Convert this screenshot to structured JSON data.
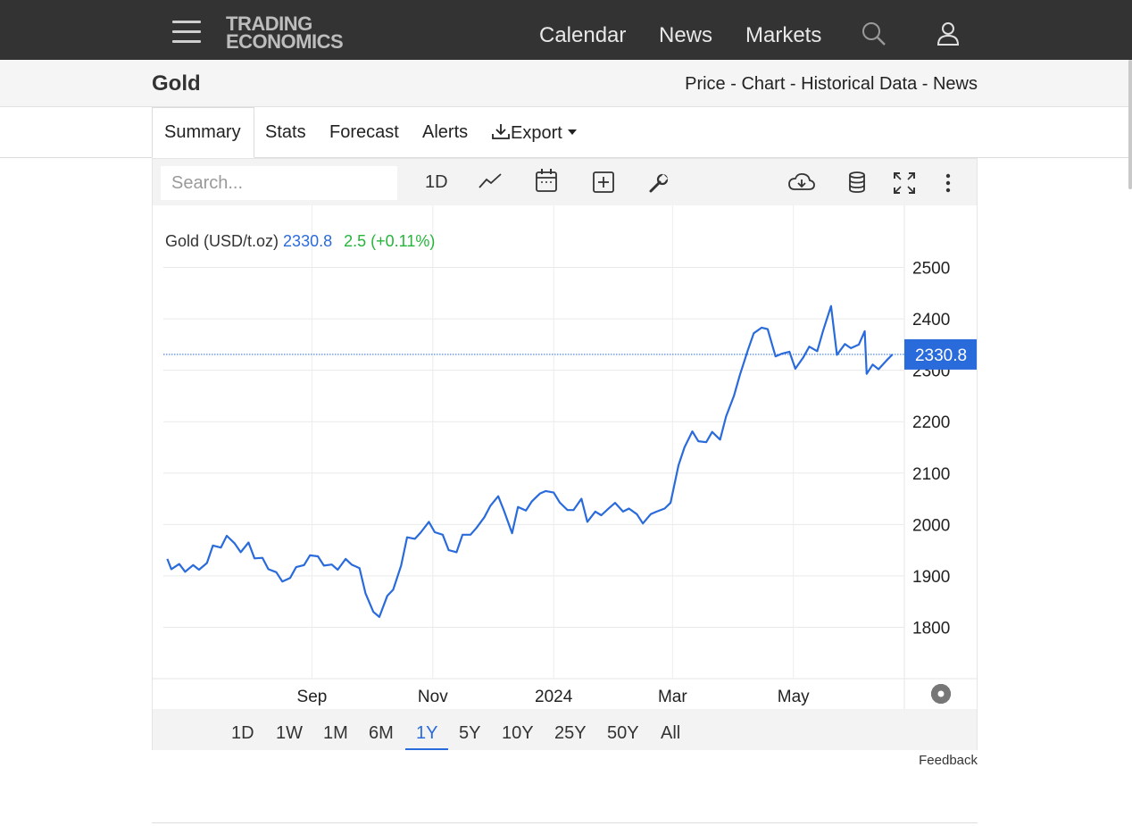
{
  "navbar": {
    "logo_line1": "TRADING",
    "logo_line2": "ECONOMICS",
    "links": [
      "Calendar",
      "News",
      "Markets"
    ],
    "icons": [
      "menu-icon",
      "search-icon",
      "user-icon"
    ]
  },
  "header": {
    "title": "Gold",
    "links": [
      "Price",
      "Chart",
      "Historical Data",
      "News"
    ],
    "separator": " - "
  },
  "tabs": [
    "Summary",
    "Stats",
    "Forecast",
    "Alerts",
    "Export"
  ],
  "toolbar": {
    "search_placeholder": "Search...",
    "interval_label": "1D",
    "icons": [
      "line-chart-icon",
      "calendar-icon",
      "add-indicator-icon",
      "wrench-icon",
      "download-cloud-icon",
      "database-icon",
      "fullscreen-icon",
      "more-vertical-icon",
      "settings-icon"
    ]
  },
  "legend": {
    "name": "Gold (USD/t.oz)",
    "price": "2330.8",
    "change": "2.5 (+0.11%)"
  },
  "range_buttons": [
    "1D",
    "1W",
    "1M",
    "6M",
    "1Y",
    "5Y",
    "10Y",
    "25Y",
    "50Y",
    "All"
  ],
  "active_range": "1Y",
  "feedback_label": "Feedback",
  "colors": {
    "line": "#2a6bdc",
    "change_positive": "#25b53a",
    "topbar": "#333333"
  },
  "chart_data": {
    "type": "line",
    "title": "",
    "xlabel": "",
    "ylabel": "",
    "ylim": [
      1700,
      2520
    ],
    "yticks": [
      1800,
      1900,
      2000,
      2100,
      2200,
      2300,
      2400,
      2500
    ],
    "x_tick_labels": [
      "Sep",
      "Nov",
      "2024",
      "Mar",
      "May"
    ],
    "x_tick_dates": [
      "2023-09-01",
      "2023-11-01",
      "2024-01-01",
      "2024-03-01",
      "2024-05-01"
    ],
    "xlim": [
      "2023-06-18",
      "2024-06-26"
    ],
    "last_value_label": "2330.8",
    "last_value": 2330.8,
    "grid": true,
    "series": [
      {
        "name": "Gold (USD/t.oz)",
        "points": [
          [
            "2023-06-20",
            1933
          ],
          [
            "2023-06-22",
            1913
          ],
          [
            "2023-06-26",
            1923
          ],
          [
            "2023-06-29",
            1908
          ],
          [
            "2023-07-03",
            1921
          ],
          [
            "2023-07-06",
            1912
          ],
          [
            "2023-07-10",
            1925
          ],
          [
            "2023-07-13",
            1959
          ],
          [
            "2023-07-17",
            1955
          ],
          [
            "2023-07-20",
            1978
          ],
          [
            "2023-07-24",
            1963
          ],
          [
            "2023-07-27",
            1946
          ],
          [
            "2023-07-31",
            1965
          ],
          [
            "2023-08-03",
            1934
          ],
          [
            "2023-08-07",
            1935
          ],
          [
            "2023-08-10",
            1913
          ],
          [
            "2023-08-14",
            1907
          ],
          [
            "2023-08-17",
            1889
          ],
          [
            "2023-08-21",
            1896
          ],
          [
            "2023-08-24",
            1917
          ],
          [
            "2023-08-28",
            1921
          ],
          [
            "2023-08-31",
            1940
          ],
          [
            "2023-09-04",
            1938
          ],
          [
            "2023-09-07",
            1920
          ],
          [
            "2023-09-11",
            1922
          ],
          [
            "2023-09-14",
            1912
          ],
          [
            "2023-09-18",
            1933
          ],
          [
            "2023-09-21",
            1922
          ],
          [
            "2023-09-25",
            1915
          ],
          [
            "2023-09-28",
            1866
          ],
          [
            "2023-10-02",
            1830
          ],
          [
            "2023-10-05",
            1820
          ],
          [
            "2023-10-09",
            1861
          ],
          [
            "2023-10-12",
            1873
          ],
          [
            "2023-10-16",
            1920
          ],
          [
            "2023-10-19",
            1975
          ],
          [
            "2023-10-23",
            1972
          ],
          [
            "2023-10-26",
            1985
          ],
          [
            "2023-10-30",
            2005
          ],
          [
            "2023-11-02",
            1985
          ],
          [
            "2023-11-06",
            1980
          ],
          [
            "2023-11-09",
            1950
          ],
          [
            "2023-11-13",
            1946
          ],
          [
            "2023-11-16",
            1980
          ],
          [
            "2023-11-20",
            1980
          ],
          [
            "2023-11-23",
            1993
          ],
          [
            "2023-11-27",
            2014
          ],
          [
            "2023-11-30",
            2036
          ],
          [
            "2023-12-04",
            2055
          ],
          [
            "2023-12-07",
            2026
          ],
          [
            "2023-12-11",
            1983
          ],
          [
            "2023-12-14",
            2034
          ],
          [
            "2023-12-18",
            2027
          ],
          [
            "2023-12-21",
            2045
          ],
          [
            "2023-12-25",
            2060
          ],
          [
            "2023-12-28",
            2065
          ],
          [
            "2024-01-01",
            2062
          ],
          [
            "2024-01-04",
            2043
          ],
          [
            "2024-01-08",
            2028
          ],
          [
            "2024-01-11",
            2028
          ],
          [
            "2024-01-15",
            2050
          ],
          [
            "2024-01-18",
            2005
          ],
          [
            "2024-01-22",
            2025
          ],
          [
            "2024-01-25",
            2018
          ],
          [
            "2024-01-29",
            2032
          ],
          [
            "2024-02-01",
            2042
          ],
          [
            "2024-02-05",
            2025
          ],
          [
            "2024-02-08",
            2031
          ],
          [
            "2024-02-12",
            2020
          ],
          [
            "2024-02-15",
            2002
          ],
          [
            "2024-02-19",
            2020
          ],
          [
            "2024-02-22",
            2025
          ],
          [
            "2024-02-26",
            2031
          ],
          [
            "2024-02-29",
            2042
          ],
          [
            "2024-03-04",
            2115
          ],
          [
            "2024-03-07",
            2150
          ],
          [
            "2024-03-11",
            2181
          ],
          [
            "2024-03-14",
            2162
          ],
          [
            "2024-03-18",
            2160
          ],
          [
            "2024-03-21",
            2180
          ],
          [
            "2024-03-25",
            2165
          ],
          [
            "2024-03-28",
            2210
          ],
          [
            "2024-04-01",
            2250
          ],
          [
            "2024-04-04",
            2291
          ],
          [
            "2024-04-08",
            2339
          ],
          [
            "2024-04-11",
            2372
          ],
          [
            "2024-04-15",
            2383
          ],
          [
            "2024-04-18",
            2380
          ],
          [
            "2024-04-22",
            2327
          ],
          [
            "2024-04-25",
            2332
          ],
          [
            "2024-04-29",
            2336
          ],
          [
            "2024-05-02",
            2303
          ],
          [
            "2024-05-06",
            2325
          ],
          [
            "2024-05-09",
            2346
          ],
          [
            "2024-05-13",
            2337
          ],
          [
            "2024-05-16",
            2377
          ],
          [
            "2024-05-20",
            2425
          ],
          [
            "2024-05-23",
            2330
          ],
          [
            "2024-05-27",
            2351
          ],
          [
            "2024-05-30",
            2343
          ],
          [
            "2024-06-03",
            2350
          ],
          [
            "2024-06-06",
            2376
          ],
          [
            "2024-06-07",
            2293
          ],
          [
            "2024-06-10",
            2311
          ],
          [
            "2024-06-13",
            2302
          ],
          [
            "2024-06-17",
            2319
          ],
          [
            "2024-06-20",
            2330.8
          ]
        ]
      }
    ]
  }
}
